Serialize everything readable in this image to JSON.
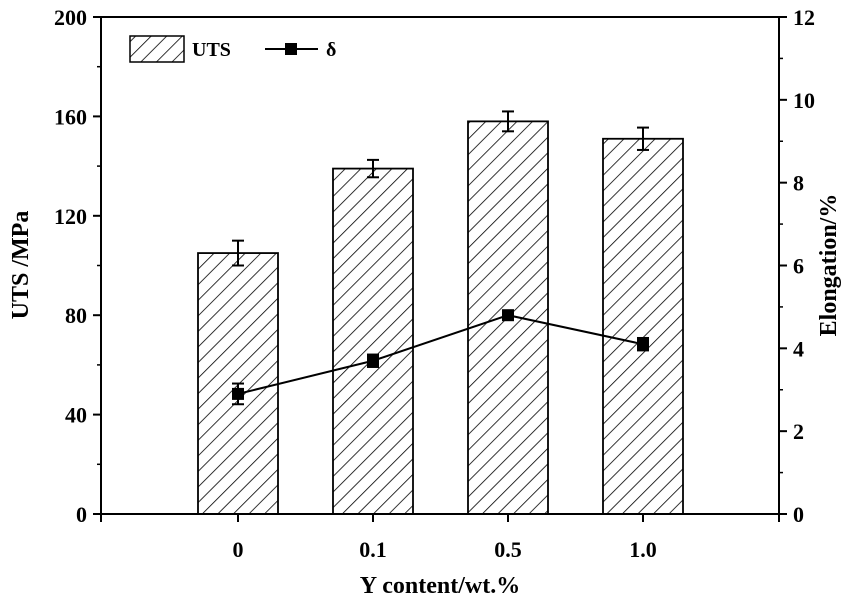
{
  "chart_data": {
    "type": "bar+line",
    "title": "",
    "categories": [
      "0",
      "0.1",
      "0.5",
      "1.0"
    ],
    "xlabel": "Y content/wt.%",
    "ylabel_left": "UTS /MPa",
    "ylabel_right": "Elongation/%",
    "ylim_left": [
      0,
      200
    ],
    "ylim_right": [
      0,
      12
    ],
    "yticks_left": [
      "0",
      "40",
      "80",
      "120",
      "160",
      "200"
    ],
    "yticks_right": [
      "0",
      "2",
      "4",
      "6",
      "8",
      "10",
      "12"
    ],
    "series": [
      {
        "name": "UTS",
        "kind": "bar",
        "axis": "left",
        "pattern": "diagonal-hatch",
        "values": [
          105,
          139,
          158,
          151
        ],
        "errors": [
          5,
          3.5,
          4,
          4.5
        ]
      },
      {
        "name": "δ",
        "kind": "line",
        "axis": "right",
        "marker": "square",
        "values": [
          2.9,
          3.7,
          4.8,
          4.1
        ],
        "errors": [
          0.25,
          0.15,
          0.1,
          0.15
        ]
      }
    ],
    "legend": {
      "position": "top-left"
    },
    "grid": false,
    "colors": {
      "line": "#000000",
      "bar_fill": "#ffffff",
      "hatch": "#000000"
    }
  }
}
